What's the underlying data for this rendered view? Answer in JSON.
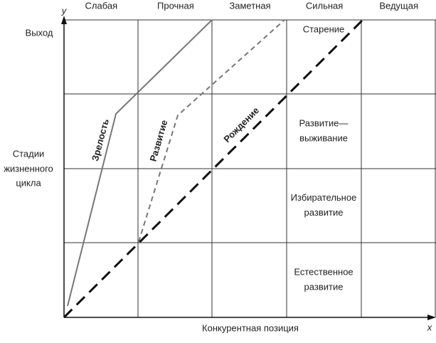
{
  "axes": {
    "y_symbol": "y",
    "y_label": "Выход",
    "x_symbol": "x",
    "x_label": "Конкурентная позиция",
    "stage_label": [
      "Стадии",
      "жизненного",
      "цикла"
    ]
  },
  "columns": [
    "Слабая",
    "Прочная",
    "Заметная",
    "Сильная",
    "Ведущая"
  ],
  "stages": [
    [
      "Старение"
    ],
    [
      "Развитие—",
      "выживание"
    ],
    [
      "Избирательное",
      "развитие"
    ],
    [
      "Естественное",
      "развитие"
    ]
  ],
  "curves": [
    "Зрелость",
    "Развитие",
    "Рождение"
  ]
}
